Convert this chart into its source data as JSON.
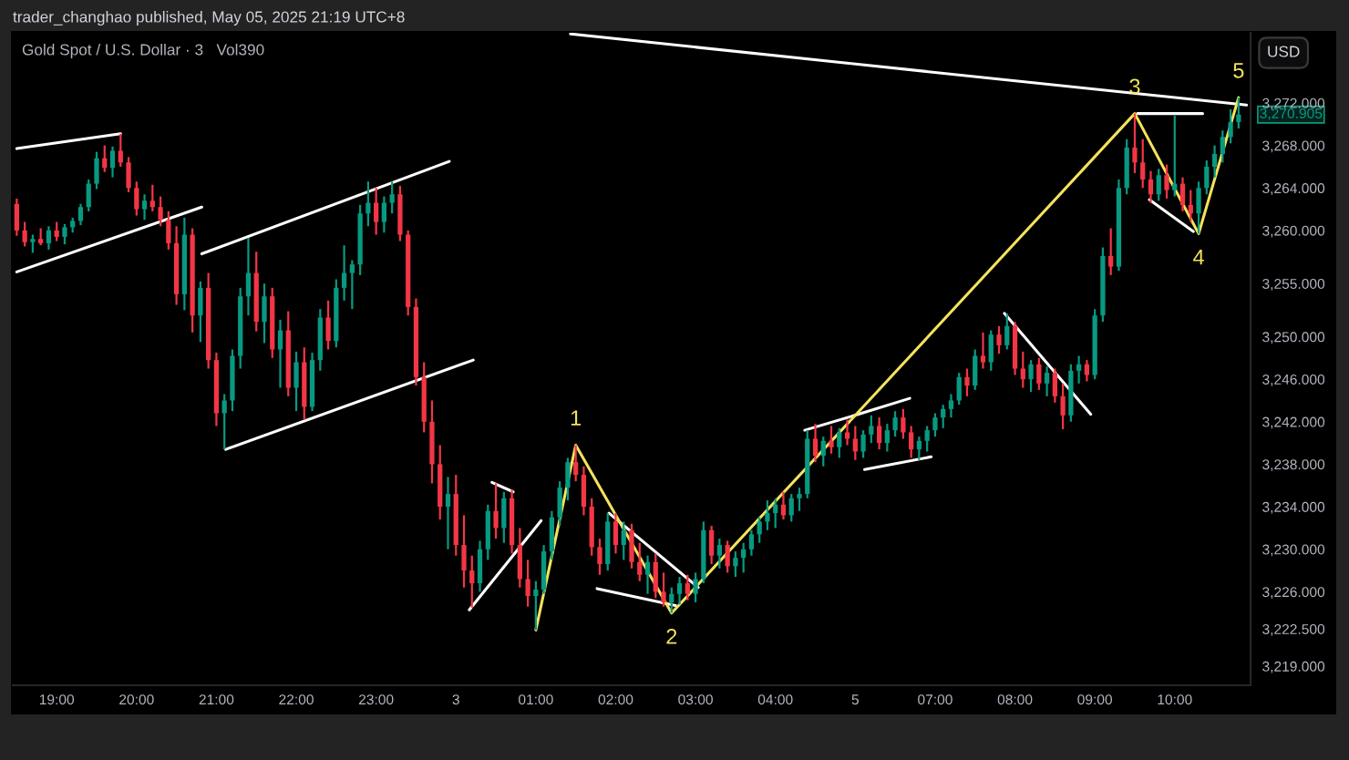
{
  "chart_data": [
    {
      "type": "candlestick",
      "title": "Gold Spot / U.S. Dollar · 3",
      "subtitle": "Vol390",
      "tick_labels": "x",
      "x": [
        "2025-05-02T18:30",
        "2025-05-02T18:36",
        "2025-05-02T18:42",
        "2025-05-02T18:48",
        "2025-05-02T18:54",
        "2025-05-02T19:00",
        "2025-05-02T19:06",
        "2025-05-02T19:12",
        "2025-05-02T19:18",
        "2025-05-02T19:24",
        "2025-05-02T19:30",
        "2025-05-02T19:36",
        "2025-05-02T19:42",
        "2025-05-02T19:48",
        "2025-05-02T19:54",
        "2025-05-02T20:00",
        "2025-05-02T20:06",
        "2025-05-02T20:12",
        "2025-05-02T20:18",
        "2025-05-02T20:24",
        "2025-05-02T20:30",
        "2025-05-02T20:36",
        "2025-05-02T20:42",
        "2025-05-02T20:48",
        "2025-05-02T20:54",
        "2025-05-02T21:00",
        "2025-05-02T21:06",
        "2025-05-02T21:12",
        "2025-05-02T21:18",
        "2025-05-02T21:24",
        "2025-05-02T21:30",
        "2025-05-02T21:36",
        "2025-05-02T21:42",
        "2025-05-02T21:48",
        "2025-05-02T21:54",
        "2025-05-02T22:00",
        "2025-05-02T22:06",
        "2025-05-02T22:12",
        "2025-05-02T22:18",
        "2025-05-02T22:24",
        "2025-05-02T22:30",
        "2025-05-02T22:36",
        "2025-05-02T22:42",
        "2025-05-02T22:48",
        "2025-05-02T22:54",
        "2025-05-02T23:00",
        "2025-05-02T23:06",
        "2025-05-02T23:12",
        "2025-05-02T23:18",
        "2025-05-02T23:24",
        "2025-05-02T23:30",
        "2025-05-02T23:36",
        "2025-05-02T23:42",
        "2025-05-02T23:48",
        "2025-05-02T23:54",
        "2025-05-03T00:00",
        "2025-05-03T00:06",
        "2025-05-03T00:12",
        "2025-05-03T00:18",
        "2025-05-03T00:24",
        "2025-05-03T00:30",
        "2025-05-03T00:36",
        "2025-05-03T00:42",
        "2025-05-03T00:48",
        "2025-05-03T00:54",
        "2025-05-03T01:00",
        "2025-05-03T01:06",
        "2025-05-03T01:12",
        "2025-05-03T01:18",
        "2025-05-03T01:24",
        "2025-05-03T01:30",
        "2025-05-03T01:36",
        "2025-05-03T01:42",
        "2025-05-03T01:48",
        "2025-05-03T01:54",
        "2025-05-03T02:00",
        "2025-05-03T02:06",
        "2025-05-03T02:12",
        "2025-05-03T02:18",
        "2025-05-03T02:24",
        "2025-05-03T02:30",
        "2025-05-03T02:36",
        "2025-05-03T02:42",
        "2025-05-03T02:48",
        "2025-05-03T02:54",
        "2025-05-03T03:00",
        "2025-05-03T03:06",
        "2025-05-03T03:12",
        "2025-05-03T03:18",
        "2025-05-03T03:24",
        "2025-05-03T03:30",
        "2025-05-03T03:36",
        "2025-05-03T03:42",
        "2025-05-03T03:48",
        "2025-05-03T03:54",
        "2025-05-03T04:00",
        "2025-05-03T04:06",
        "2025-05-03T04:12",
        "2025-05-03T04:18",
        "2025-05-03T04:24",
        "2025-05-03T04:30",
        "2025-05-03T04:36",
        "2025-05-03T04:42",
        "2025-05-03T04:48",
        "2025-05-03T04:54"
      ],
      "ohlc": [
        [
          3262.5,
          3263,
          3259.5,
          3260
        ],
        [
          3260,
          3260.8,
          3258.5,
          3258.9
        ],
        [
          3258.9,
          3259.6,
          3257.9,
          3259.2
        ],
        [
          3259.2,
          3260.2,
          3258.6,
          3258.8
        ],
        [
          3258.8,
          3260.4,
          3258.2,
          3260
        ],
        [
          3260,
          3260.8,
          3259,
          3259.4
        ],
        [
          3259.4,
          3260.6,
          3258.7,
          3260.3
        ],
        [
          3260.3,
          3261.2,
          3259.8,
          3260.9
        ],
        [
          3260.9,
          3262.5,
          3260.5,
          3262.2
        ],
        [
          3262.2,
          3264.8,
          3261.8,
          3264.4
        ],
        [
          3264.4,
          3267.4,
          3263.9,
          3266.8
        ],
        [
          3266.8,
          3268,
          3265.5,
          3265.9
        ],
        [
          3265.9,
          3267.9,
          3265,
          3267.5
        ],
        [
          3267.5,
          3269.1,
          3266,
          3266.4
        ],
        [
          3266.4,
          3266.9,
          3263.6,
          3264
        ],
        [
          3264,
          3264.6,
          3261.4,
          3262
        ],
        [
          3262,
          3263.4,
          3261,
          3262.8
        ],
        [
          3262.8,
          3264.3,
          3261.8,
          3262.2
        ],
        [
          3262.2,
          3263.2,
          3260.4,
          3261
        ],
        [
          3261,
          3261.8,
          3258.2,
          3258.8
        ],
        [
          3258.8,
          3260.4,
          3253,
          3254
        ],
        [
          3254,
          3261.2,
          3252.5,
          3259.6
        ],
        [
          3259.6,
          3260.2,
          3250.4,
          3252
        ],
        [
          3252,
          3255.2,
          3249.5,
          3254.6
        ],
        [
          3254.6,
          3256,
          3247,
          3247.8
        ],
        [
          3247.8,
          3248.5,
          3241.6,
          3242.8
        ],
        [
          3242.8,
          3244.6,
          3239.4,
          3244
        ],
        [
          3244,
          3248.8,
          3243,
          3248.2
        ],
        [
          3248.2,
          3254.6,
          3247,
          3253.8
        ],
        [
          3253.8,
          3259.3,
          3252,
          3256
        ],
        [
          3256,
          3258,
          3250.5,
          3251.4
        ],
        [
          3251.4,
          3255,
          3249.4,
          3253.8
        ],
        [
          3253.8,
          3254.6,
          3248,
          3248.8
        ],
        [
          3248.8,
          3251.6,
          3245.2,
          3250.6
        ],
        [
          3250.6,
          3252.4,
          3244.4,
          3245.2
        ],
        [
          3245.2,
          3248.6,
          3243,
          3247.6
        ],
        [
          3247.6,
          3249,
          3242.2,
          3243.4
        ],
        [
          3243.4,
          3248.5,
          3243,
          3247.8
        ],
        [
          3247.8,
          3252.6,
          3246.8,
          3251.8
        ],
        [
          3251.8,
          3253.4,
          3248.8,
          3249.6
        ],
        [
          3249.6,
          3255.4,
          3249,
          3254.6
        ],
        [
          3254.6,
          3258.6,
          3253.4,
          3256
        ],
        [
          3256,
          3257.2,
          3252.6,
          3256.8
        ],
        [
          3256.8,
          3262.4,
          3255.8,
          3261.6
        ],
        [
          3261.6,
          3264.6,
          3260.4,
          3262.6
        ],
        [
          3262.6,
          3264,
          3259.6,
          3260.8
        ],
        [
          3260.8,
          3263.2,
          3259.8,
          3262.6
        ],
        [
          3262.6,
          3264.6,
          3261.6,
          3263.4
        ],
        [
          3263.4,
          3264.2,
          3259,
          3259.6
        ],
        [
          3259.6,
          3260,
          3252,
          3252.8
        ],
        [
          3252.8,
          3253.6,
          3245.4,
          3246.2
        ],
        [
          3246.2,
          3247.6,
          3241,
          3242
        ],
        [
          3242,
          3244,
          3236.2,
          3238
        ],
        [
          3238,
          3239.8,
          3232.8,
          3234
        ],
        [
          3234,
          3236.8,
          3230,
          3235.2
        ],
        [
          3235.2,
          3237,
          3229.4,
          3230.4
        ],
        [
          3230.4,
          3233.2,
          3226.4,
          3228
        ],
        [
          3228,
          3229.4,
          3224.5,
          3226.8
        ],
        [
          3226.8,
          3230.8,
          3226,
          3230
        ],
        [
          3230,
          3234.2,
          3229,
          3233.6
        ],
        [
          3233.6,
          3236.2,
          3231,
          3232
        ],
        [
          3232,
          3235.4,
          3230.6,
          3234.8
        ],
        [
          3234.8,
          3235.6,
          3229.6,
          3230.4
        ],
        [
          3230.4,
          3232,
          3226.4,
          3227.2
        ],
        [
          3227.2,
          3229,
          3224.6,
          3225.6
        ],
        [
          3225.6,
          3227,
          3222.4,
          3226.2
        ],
        [
          3226.2,
          3230.4,
          3225.8,
          3229.8
        ],
        [
          3229.8,
          3233.6,
          3229,
          3233
        ],
        [
          3233,
          3236.4,
          3232.2,
          3235.8
        ],
        [
          3235.8,
          3238.6,
          3234.6,
          3238.2
        ],
        [
          3238.2,
          3239.8,
          3236.4,
          3237
        ],
        [
          3237,
          3237.8,
          3233.2,
          3234
        ],
        [
          3234,
          3234.8,
          3229.4,
          3230.2
        ],
        [
          3230.2,
          3231,
          3227.6,
          3228.6
        ],
        [
          3228.6,
          3233.4,
          3228,
          3232.6
        ],
        [
          3232.6,
          3233.4,
          3229.6,
          3230.4
        ],
        [
          3230.4,
          3232.6,
          3229,
          3231.8
        ],
        [
          3231.8,
          3232.4,
          3228.2,
          3228.8
        ],
        [
          3228.8,
          3230.6,
          3227,
          3227.6
        ],
        [
          3227.6,
          3229.4,
          3225.8,
          3228.8
        ],
        [
          3228.8,
          3229.6,
          3225.4,
          3226
        ],
        [
          3226,
          3227.8,
          3224.6,
          3225
        ],
        [
          3225,
          3226.4,
          3224,
          3225.8
        ],
        [
          3225.8,
          3227.4,
          3224.8,
          3226.8
        ],
        [
          3226.8,
          3227.6,
          3225.2,
          3225.8
        ],
        [
          3225.8,
          3227.8,
          3225,
          3227.2
        ],
        [
          3227.2,
          3232.6,
          3226.8,
          3231.8
        ],
        [
          3231.8,
          3232.2,
          3228.6,
          3229.4
        ],
        [
          3229.4,
          3231,
          3228.2,
          3230.4
        ],
        [
          3230.4,
          3230.8,
          3227.8,
          3228.4
        ],
        [
          3228.4,
          3229.8,
          3227.4,
          3229.2
        ],
        [
          3229.2,
          3230.6,
          3227.8,
          3230
        ],
        [
          3230,
          3231.8,
          3229.4,
          3231.4
        ],
        [
          3231.4,
          3233,
          3230.6,
          3232.6
        ],
        [
          3232.6,
          3234.6,
          3231.8,
          3233.4
        ],
        [
          3233.4,
          3234.8,
          3232,
          3234.2
        ],
        [
          3234.2,
          3235.4,
          3232.8,
          3233.2
        ],
        [
          3233.2,
          3235.2,
          3232.6,
          3234.8
        ],
        [
          3234.8,
          3235.8,
          3233.6,
          3235.2
        ],
        [
          3235.2,
          3241.2,
          3234.8,
          3240.4
        ],
        [
          3240.4,
          3241.8,
          3238.2,
          3238.8
        ],
        [
          3238.8,
          3240.6,
          3237.8,
          3240.2
        ],
        [
          3240.2,
          3241.6,
          3239,
          3239.6
        ],
        [
          3239.6,
          3241.4,
          3238.6,
          3241
        ],
        [
          3241,
          3242.2,
          3239.8,
          3240.4
        ]
      ],
      "colors": [
        "#f23645",
        "#f23645",
        "#089981",
        "#f23645",
        "#089981",
        "#f23645",
        "#089981",
        "#089981",
        "#089981",
        "#089981",
        "#089981",
        "#f23645",
        "#089981",
        "#f23645",
        "#f23645",
        "#f23645",
        "#089981",
        "#f23645",
        "#f23645",
        "#f23645",
        "#f23645",
        "#089981",
        "#f23645",
        "#089981",
        "#f23645",
        "#f23645",
        "#089981",
        "#089981",
        "#089981",
        "#089981",
        "#f23645",
        "#089981",
        "#f23645",
        "#089981",
        "#f23645",
        "#089981",
        "#f23645",
        "#089981",
        "#089981",
        "#f23645",
        "#089981",
        "#089981",
        "#089981",
        "#089981",
        "#089981",
        "#f23645",
        "#089981",
        "#089981",
        "#f23645",
        "#f23645",
        "#f23645",
        "#f23645",
        "#f23645",
        "#f23645",
        "#089981",
        "#f23645",
        "#f23645",
        "#f23645",
        "#089981",
        "#089981",
        "#f23645",
        "#089981",
        "#f23645",
        "#f23645",
        "#f23645",
        "#089981",
        "#089981",
        "#089981",
        "#089981",
        "#089981",
        "#f23645",
        "#f23645",
        "#f23645",
        "#f23645",
        "#089981",
        "#f23645",
        "#089981",
        "#f23645",
        "#f23645",
        "#089981",
        "#f23645",
        "#f23645",
        "#089981",
        "#089981",
        "#f23645",
        "#089981",
        "#089981",
        "#f23645",
        "#089981",
        "#f23645",
        "#089981",
        "#089981",
        "#089981",
        "#089981",
        "#089981",
        "#089981",
        "#f23645",
        "#089981",
        "#089981",
        "#089981",
        "#f23645",
        "#089981",
        "#f23645",
        "#089981",
        "#f23645"
      ],
      "series": [
        {
          "type": "line",
          "color": "#ffffff",
          "x": [
            "2025-05-02T18:30",
            "2025-05-02T19:48"
          ],
          "values": [
            3267.7,
            3269.1
          ]
        },
        {
          "type": "line",
          "color": "#ffffff",
          "x": [
            "2025-05-02T18:30",
            "2025-05-02T20:49"
          ],
          "values": [
            3256.1,
            3262.2
          ]
        },
        {
          "type": "line",
          "color": "#ffffff",
          "x": [
            "2025-05-02T20:49",
            "2025-05-02T23:55"
          ],
          "values": [
            3257.8,
            3266.5
          ]
        },
        {
          "type": "line",
          "color": "#ffffff",
          "x": [
            "2025-05-02T21:07",
            "2025-05-03T00:13"
          ],
          "values": [
            3239.4,
            3247.8
          ]
        },
        {
          "type": "line",
          "color": "#ffffff",
          "x": [
            "2025-05-03T01:26",
            "2025-05-03T04:57"
          ],
          "values": [
            3278.5,
            3275.7
          ]
        },
        {
          "type": "line",
          "color": "#ffffff",
          "x": [
            "2025-05-03T00:27",
            "2025-05-03T00:43"
          ],
          "values": [
            3236.3,
            3235.4
          ]
        },
        {
          "type": "line",
          "color": "#ffffff",
          "x": [
            "2025-05-03T00:10",
            "2025-05-03T01:04"
          ],
          "values": [
            3224.3,
            3232.7
          ]
        },
        {
          "type": "line",
          "color": "#ffffff",
          "x": [
            "2025-05-03T01:55",
            "2025-05-03T03:02"
          ],
          "values": [
            3233.4,
            3226.4
          ]
        },
        {
          "type": "line",
          "color": "#ffffff",
          "x": [
            "2025-05-03T01:46",
            "2025-05-03T02:45"
          ],
          "values": [
            3226.3,
            3224.7
          ]
        },
        {
          "type": "line",
          "color": "#ffffff",
          "x": [
            "2025-05-03T04:22",
            "2025-05-03T04:57"
          ],
          "values": [
            3241.2,
            3242.5
          ]
        },
        {
          "type": "line",
          "color": "#f4e35c",
          "x": [
            "2025-05-03T01:00",
            "2025-05-03T01:30",
            "2025-05-03T02:42",
            "2025-05-03T04:57"
          ],
          "values": [
            3222.4,
            3239.8,
            3224.0,
            3242.2
          ]
        }
      ],
      "annotations": [
        "trader_changhao published, May 05, 2025 21:19 UTC+8",
        {
          "text": "1",
          "x": "2025-05-03T01:30",
          "y": 3239.8
        },
        {
          "text": "2",
          "x": "2025-05-03T02:42",
          "y": 3224.0
        }
      ],
      "xlim": [
        "2025-05-02T18:27",
        "2025-05-03T04:57"
      ],
      "xticks": [
        {
          "value": "2025-05-02T19:00",
          "label": "19:00"
        },
        {
          "value": "2025-05-02T20:00",
          "label": "20:00"
        },
        {
          "value": "2025-05-02T21:00",
          "label": "21:00"
        },
        {
          "value": "2025-05-02T22:00",
          "label": "22:00"
        },
        {
          "value": "2025-05-02T23:00",
          "label": "23:00"
        },
        {
          "value": "2025-05-03T00:00",
          "label": "3"
        },
        {
          "value": "2025-05-03T01:00",
          "label": "01:00"
        },
        {
          "value": "2025-05-03T02:00",
          "label": "02:00"
        },
        {
          "value": "2025-05-03T03:00",
          "label": "03:00"
        },
        {
          "value": "2025-05-03T04:00",
          "label": "04:00"
        }
      ],
      "ylim": [
        3217.2,
        3278.6
      ]
    },
    {
      "type": "candlestick",
      "ylabel": "USD",
      "x": [
        "2025-05-05T06:00",
        "2025-05-05T06:06",
        "2025-05-05T06:12",
        "2025-05-05T06:18",
        "2025-05-05T06:24",
        "2025-05-05T06:30",
        "2025-05-05T06:36",
        "2025-05-05T06:42",
        "2025-05-05T06:48",
        "2025-05-05T06:54",
        "2025-05-05T07:00",
        "2025-05-05T07:06",
        "2025-05-05T07:12",
        "2025-05-05T07:18",
        "2025-05-05T07:24",
        "2025-05-05T07:30",
        "2025-05-05T07:36",
        "2025-05-05T07:42",
        "2025-05-05T07:48",
        "2025-05-05T07:54",
        "2025-05-05T08:00",
        "2025-05-05T08:06",
        "2025-05-05T08:12",
        "2025-05-05T08:18",
        "2025-05-05T08:24",
        "2025-05-05T08:30",
        "2025-05-05T08:36",
        "2025-05-05T08:42",
        "2025-05-05T08:48",
        "2025-05-05T08:54",
        "2025-05-05T09:00",
        "2025-05-05T09:06",
        "2025-05-05T09:12",
        "2025-05-05T09:18",
        "2025-05-05T09:24",
        "2025-05-05T09:30",
        "2025-05-05T09:36",
        "2025-05-05T09:42",
        "2025-05-05T09:48",
        "2025-05-05T09:54",
        "2025-05-05T10:00",
        "2025-05-05T10:06",
        "2025-05-05T10:12",
        "2025-05-05T10:18",
        "2025-05-05T10:24",
        "2025-05-05T10:30",
        "2025-05-05T10:36",
        "2025-05-05T10:42",
        "2025-05-05T10:48"
      ],
      "ohlc": [
        [
          3240.4,
          3241.6,
          3238.4,
          3239.2
        ],
        [
          3239.2,
          3241.2,
          3238.6,
          3240.8
        ],
        [
          3240.8,
          3242.6,
          3240,
          3241.6
        ],
        [
          3241.6,
          3242.4,
          3239.4,
          3240
        ],
        [
          3240,
          3241.8,
          3239.2,
          3241.2
        ],
        [
          3241.2,
          3243,
          3240.6,
          3242.4
        ],
        [
          3242.4,
          3243.2,
          3240.4,
          3241
        ],
        [
          3241,
          3241.6,
          3238.6,
          3239.4
        ],
        [
          3239.4,
          3240.6,
          3238.4,
          3240.2
        ],
        [
          3240.2,
          3241.6,
          3239.2,
          3241.2
        ],
        [
          3241.2,
          3242.8,
          3240.6,
          3242.4
        ],
        [
          3242.4,
          3243.6,
          3241.4,
          3243.2
        ],
        [
          3243.2,
          3244.6,
          3242.4,
          3244
        ],
        [
          3244,
          3246.6,
          3243.6,
          3246.2
        ],
        [
          3246.2,
          3247,
          3244.4,
          3245.4
        ],
        [
          3245.4,
          3248.8,
          3245,
          3248.2
        ],
        [
          3248.2,
          3250.4,
          3247,
          3247.6
        ],
        [
          3247.6,
          3250.6,
          3246.8,
          3250.2
        ],
        [
          3250.2,
          3251,
          3248.4,
          3249.2
        ],
        [
          3249.2,
          3252.2,
          3248.8,
          3251
        ],
        [
          3251,
          3251.4,
          3246.4,
          3247
        ],
        [
          3247,
          3248.6,
          3245.2,
          3246
        ],
        [
          3246,
          3247.8,
          3244.8,
          3247.4
        ],
        [
          3247.4,
          3248,
          3245,
          3245.6
        ],
        [
          3245.6,
          3247.2,
          3244.4,
          3246.6
        ],
        [
          3246.6,
          3247,
          3243.8,
          3244.4
        ],
        [
          3244.4,
          3245.6,
          3241.3,
          3242.6
        ],
        [
          3242.6,
          3247.4,
          3242,
          3246.8
        ],
        [
          3246.8,
          3248.2,
          3245.6,
          3247.4
        ],
        [
          3247.4,
          3247.8,
          3245.8,
          3246.4
        ],
        [
          3246.4,
          3252.6,
          3246,
          3252
        ],
        [
          3252,
          3258.4,
          3251.4,
          3257.6
        ],
        [
          3257.6,
          3260.2,
          3255.8,
          3256.6
        ],
        [
          3256.6,
          3264.8,
          3256.2,
          3264
        ],
        [
          3264,
          3268.6,
          3263.4,
          3267.8
        ],
        [
          3267.8,
          3271,
          3265.4,
          3266.4
        ],
        [
          3266.4,
          3268.6,
          3264,
          3264.8
        ],
        [
          3264.8,
          3265.6,
          3262.6,
          3263.4
        ],
        [
          3263.4,
          3265.8,
          3262.8,
          3265.2
        ],
        [
          3265.2,
          3266.2,
          3263,
          3263.8
        ],
        [
          3263.8,
          3270.8,
          3263.2,
          3264.4
        ],
        [
          3264.4,
          3265,
          3261.8,
          3262.4
        ],
        [
          3262.4,
          3263.8,
          3260.8,
          3261.6
        ],
        [
          3261.6,
          3264.6,
          3259.7,
          3264
        ],
        [
          3264,
          3266.6,
          3263.4,
          3266
        ],
        [
          3266,
          3268,
          3265,
          3267.2
        ],
        [
          3267.2,
          3269.4,
          3266.4,
          3268.8
        ],
        [
          3268.8,
          3271.4,
          3268.2,
          3270.2
        ],
        [
          3270.2,
          3272.5,
          3269.6,
          3270.905
        ]
      ],
      "colors": [
        "#f23645",
        "#089981",
        "#089981",
        "#f23645",
        "#089981",
        "#089981",
        "#f23645",
        "#f23645",
        "#089981",
        "#089981",
        "#089981",
        "#089981",
        "#089981",
        "#089981",
        "#f23645",
        "#089981",
        "#f23645",
        "#089981",
        "#f23645",
        "#089981",
        "#f23645",
        "#f23645",
        "#089981",
        "#f23645",
        "#089981",
        "#f23645",
        "#f23645",
        "#089981",
        "#089981",
        "#f23645",
        "#089981",
        "#089981",
        "#f23645",
        "#089981",
        "#089981",
        "#f23645",
        "#f23645",
        "#f23645",
        "#089981",
        "#f23645",
        "#089981",
        "#f23645",
        "#f23645",
        "#089981",
        "#089981",
        "#089981",
        "#089981",
        "#089981",
        "#089981"
      ],
      "series": [
        {
          "type": "line",
          "color": "#ffffff",
          "x": [
            "2025-05-05T05:57",
            "2025-05-05T10:54"
          ],
          "values": [
            3275.7,
            3271.8
          ]
        },
        {
          "type": "line",
          "color": "#ffffff",
          "x": [
            "2025-05-05T05:57",
            "2025-05-05T06:41"
          ],
          "values": [
            3242.5,
            3244.2
          ]
        },
        {
          "type": "line",
          "color": "#ffffff",
          "x": [
            "2025-05-05T06:07",
            "2025-05-05T06:57"
          ],
          "values": [
            3237.5,
            3238.7
          ]
        },
        {
          "type": "line",
          "color": "#ffffff",
          "x": [
            "2025-05-05T07:52",
            "2025-05-05T08:57"
          ],
          "values": [
            3252.2,
            3242.7
          ]
        },
        {
          "type": "line",
          "color": "#ffffff",
          "x": [
            "2025-05-05T09:32",
            "2025-05-05T10:21"
          ],
          "values": [
            3271.0,
            3271.0
          ]
        },
        {
          "type": "line",
          "color": "#ffffff",
          "x": [
            "2025-05-05T09:41",
            "2025-05-05T10:14"
          ],
          "values": [
            3262.9,
            3259.9
          ]
        },
        {
          "type": "line",
          "color": "#f4e35c",
          "x": [
            "2025-05-05T05:57",
            "2025-05-05T09:30",
            "2025-05-05T10:18",
            "2025-05-05T10:48"
          ],
          "values": [
            3242.2,
            3271.0,
            3259.7,
            3272.5
          ]
        }
      ],
      "annotations": [
        {
          "text": "3",
          "x": "2025-05-05T09:30",
          "y": 3271.0
        },
        {
          "text": "4",
          "x": "2025-05-05T10:18",
          "y": 3259.7
        },
        {
          "text": "5",
          "x": "2025-05-05T10:48",
          "y": 3272.5
        },
        "3,270.905"
      ],
      "xlim": [
        "2025-05-05T05:57",
        "2025-05-05T10:57"
      ],
      "xticks": [
        {
          "value": "2025-05-05T06:00",
          "label": "5"
        },
        {
          "value": "2025-05-05T07:00",
          "label": "07:00"
        },
        {
          "value": "2025-05-05T08:00",
          "label": "08:00"
        },
        {
          "value": "2025-05-05T09:00",
          "label": "09:00"
        },
        {
          "value": "2025-05-05T10:00",
          "label": "10:00"
        }
      ],
      "ylim": [
        3217.2,
        3278.6
      ],
      "yticks": [
        {
          "value": 3219,
          "label": "3,219.000"
        },
        {
          "value": 3222.5,
          "label": "3,222.500"
        },
        {
          "value": 3226,
          "label": "3,226.000"
        },
        {
          "value": 3230,
          "label": "3,230.000"
        },
        {
          "value": 3234,
          "label": "3,234.000"
        },
        {
          "value": 3238,
          "label": "3,238.000"
        },
        {
          "value": 3242,
          "label": "3,242.000"
        },
        {
          "value": 3246,
          "label": "3,246.000"
        },
        {
          "value": 3250,
          "label": "3,250.000"
        },
        {
          "value": 3255,
          "label": "3,255.000"
        },
        {
          "value": 3260,
          "label": "3,260.000"
        },
        {
          "value": 3264,
          "label": "3,264.000"
        },
        {
          "value": 3268,
          "label": "3,268.000"
        },
        {
          "value": 3272,
          "label": "3,272.000"
        }
      ]
    }
  ]
}
